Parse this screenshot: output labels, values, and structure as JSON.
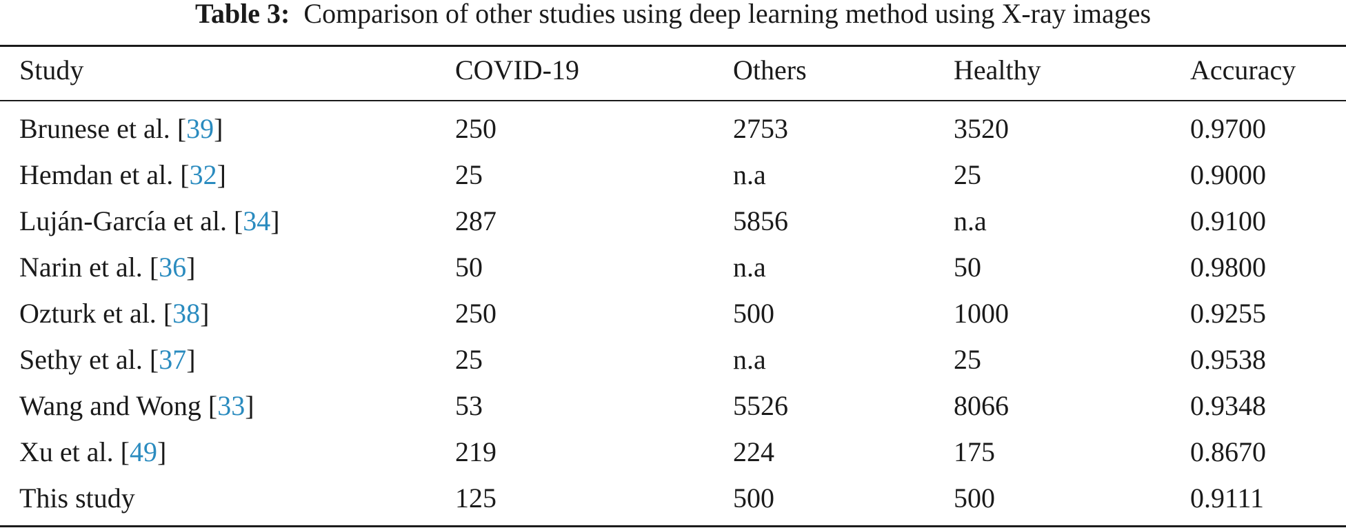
{
  "caption": {
    "label": "Table 3:",
    "text": "Comparison of other studies using deep learning method using X-ray images"
  },
  "columns": [
    "Study",
    "COVID-19",
    "Others",
    "Healthy",
    "Accuracy"
  ],
  "rows": [
    {
      "study": "Brunese et al.",
      "ref": "39",
      "covid": "250",
      "others": "2753",
      "healthy": "3520",
      "accuracy": "0.9700"
    },
    {
      "study": "Hemdan et al.",
      "ref": "32",
      "covid": "25",
      "others": "n.a",
      "healthy": "25",
      "accuracy": "0.9000"
    },
    {
      "study": "Luján-García et al.",
      "ref": "34",
      "covid": "287",
      "others": "5856",
      "healthy": "n.a",
      "accuracy": "0.9100"
    },
    {
      "study": "Narin et al.",
      "ref": "36",
      "covid": "50",
      "others": "n.a",
      "healthy": "50",
      "accuracy": "0.9800"
    },
    {
      "study": "Ozturk et al.",
      "ref": "38",
      "covid": "250",
      "others": "500",
      "healthy": "1000",
      "accuracy": "0.9255"
    },
    {
      "study": "Sethy et al.",
      "ref": "37",
      "covid": "25",
      "others": "n.a",
      "healthy": "25",
      "accuracy": "0.9538"
    },
    {
      "study": "Wang and Wong",
      "ref": "33",
      "covid": "53",
      "others": "5526",
      "healthy": "8066",
      "accuracy": "0.9348"
    },
    {
      "study": "Xu et al.",
      "ref": "49",
      "covid": "219",
      "others": "224",
      "healthy": "175",
      "accuracy": "0.8670"
    },
    {
      "study": "This study",
      "ref": "",
      "covid": "125",
      "others": "500",
      "healthy": "500",
      "accuracy": "0.9111"
    }
  ]
}
